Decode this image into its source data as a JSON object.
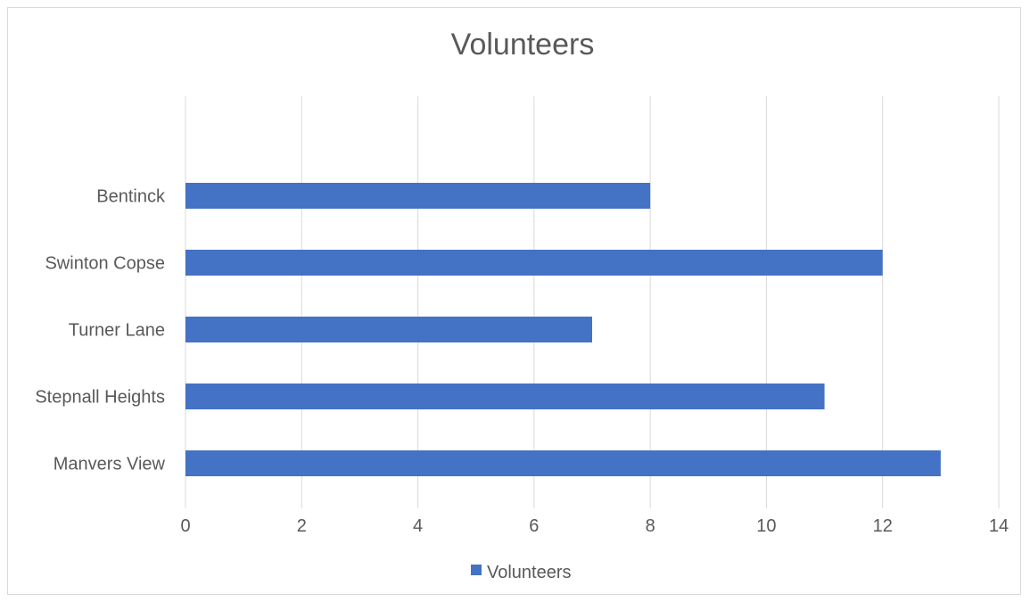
{
  "chart_data": {
    "type": "bar",
    "orientation": "horizontal",
    "title": "Volunteers",
    "categories": [
      "Bentinck",
      "Swinton Copse",
      "Turner Lane",
      "Stepnall Heights",
      "Manvers View"
    ],
    "series": [
      {
        "name": "Volunteers",
        "values": [
          8,
          12,
          7,
          11,
          13
        ],
        "color": "#4472c4"
      }
    ],
    "xlim": [
      0,
      14
    ],
    "x_ticks": [
      "0",
      "2",
      "4",
      "6",
      "8",
      "10",
      "12",
      "14"
    ],
    "grid": true,
    "legend_position": "bottom",
    "colors": {
      "bar": "#4472c4",
      "grid": "#d9d9d9",
      "text": "#595959",
      "border": "#d9d9d9"
    }
  }
}
